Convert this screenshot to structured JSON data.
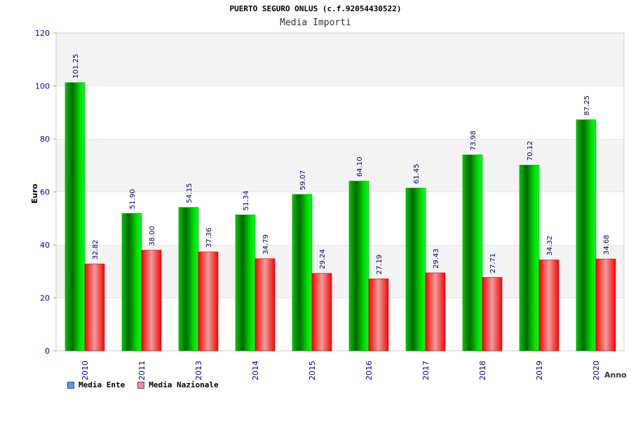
{
  "chart_data": {
    "type": "bar",
    "title": "PUERTO SEGURO ONLUS (c.f.92054430522)",
    "subtitle": "Media Importi",
    "xlabel": "Anno",
    "ylabel": "Euro",
    "ylim": [
      0,
      120
    ],
    "yticks": [
      "0",
      "20",
      "40",
      "60",
      "80",
      "100",
      "120"
    ],
    "grid": true,
    "categories": [
      "2010",
      "2011",
      "2013",
      "2014",
      "2015",
      "2016",
      "2017",
      "2018",
      "2019",
      "2020"
    ],
    "series": [
      {
        "name": "Media Ente",
        "color": "#00cc00",
        "values": [
          101.25,
          51.9,
          54.15,
          51.34,
          59.07,
          64.1,
          61.45,
          73.98,
          70.12,
          87.25
        ],
        "labels": [
          "101.25",
          "51.90",
          "54.15",
          "51.34",
          "59.07",
          "64.10",
          "61.45",
          "73.98",
          "70.12",
          "87.25"
        ]
      },
      {
        "name": "Media Nazionale",
        "color": "#ff0000",
        "values": [
          32.82,
          38.0,
          37.36,
          34.79,
          29.24,
          27.19,
          29.43,
          27.71,
          34.32,
          34.68
        ],
        "labels": [
          "32.82",
          "38.00",
          "37.36",
          "34.79",
          "29.24",
          "27.19",
          "29.43",
          "27.71",
          "34.32",
          "34.68"
        ]
      }
    ],
    "legend": {
      "position": "bottom-left",
      "items": [
        {
          "label": "Media Ente",
          "swatch": "#5599ee"
        },
        {
          "label": "Media Nazionale",
          "swatch": "#ee88aa"
        }
      ]
    }
  }
}
